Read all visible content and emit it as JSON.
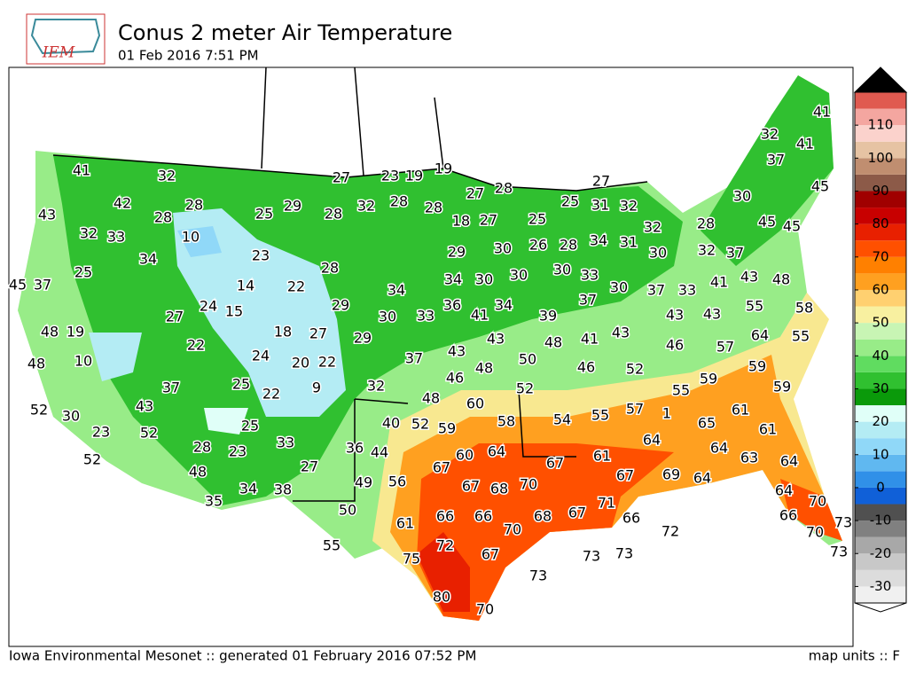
{
  "header": {
    "logo": "IEM",
    "title": "Conus 2 meter Air Temperature",
    "subtitle": "01 Feb 2016 7:51 PM"
  },
  "stations": {
    "values": [
      41,
      32,
      27,
      23,
      19,
      19,
      27,
      41,
      32,
      41,
      37,
      45,
      42,
      28,
      25,
      29,
      28,
      32,
      28,
      28,
      27,
      28,
      18,
      27,
      25,
      25,
      31,
      32,
      30,
      43,
      28,
      32,
      33,
      10,
      28,
      45,
      45,
      32,
      23,
      34,
      28,
      29,
      30,
      26,
      28,
      34,
      31,
      30,
      32,
      37,
      25,
      14,
      22,
      34,
      34,
      30,
      30,
      30,
      33,
      30,
      37,
      33,
      41,
      43,
      48,
      45,
      37,
      24,
      15,
      29,
      36,
      41,
      34,
      39,
      37,
      55,
      58,
      27,
      30,
      33,
      43,
      43,
      48,
      19,
      18,
      27,
      29,
      43,
      48,
      41,
      43,
      46,
      57,
      64,
      55,
      22,
      43,
      50,
      24,
      20,
      22,
      37,
      48,
      10,
      46,
      48,
      46,
      52,
      59,
      37,
      25,
      22,
      9,
      32,
      59,
      59,
      48,
      52,
      55,
      60,
      43,
      52,
      30,
      61,
      54,
      55,
      57,
      1,
      65,
      40,
      52,
      59,
      58,
      25,
      23,
      52,
      61,
      33,
      64,
      28,
      23,
      36,
      44,
      64,
      63,
      60,
      64,
      61,
      52,
      67,
      67,
      27,
      64,
      48,
      67,
      69,
      64,
      49,
      56,
      67,
      68,
      70,
      34,
      38,
      64,
      35,
      71,
      70,
      50,
      66,
      66,
      68,
      67,
      66,
      66,
      61,
      73,
      70,
      72,
      70,
      55,
      72,
      67,
      73,
      73,
      75,
      73,
      73,
      80,
      70
    ]
  },
  "colorbar": {
    "ticks": [
      -30,
      -20,
      -10,
      0,
      10,
      20,
      30,
      40,
      50,
      60,
      70,
      80,
      90,
      100,
      110
    ],
    "colors": [
      "#f0f0f0",
      "#dcdcdc",
      "#c8c8c8",
      "#a8a8a8",
      "#808080",
      "#505050",
      "#1060d8",
      "#3090e8",
      "#60b8f0",
      "#90d8f8",
      "#b4ecf4",
      "#e0fff8",
      "#0a9a0a",
      "#30c030",
      "#60dc60",
      "#98ec88",
      "#c8f5b4",
      "#f8f0a0",
      "#ffd070",
      "#ffa020",
      "#ff8000",
      "#ff5000",
      "#e82000",
      "#c80000",
      "#a00000",
      "#8c5a48",
      "#c08e70",
      "#e6c3a3",
      "#fbd2cc",
      "#f4a6a0",
      "#e05a50"
    ]
  },
  "footer": {
    "credit": "Iowa Environmental Mesonet :: generated 01 February 2016 07:52 PM",
    "units": "map units :: F"
  }
}
